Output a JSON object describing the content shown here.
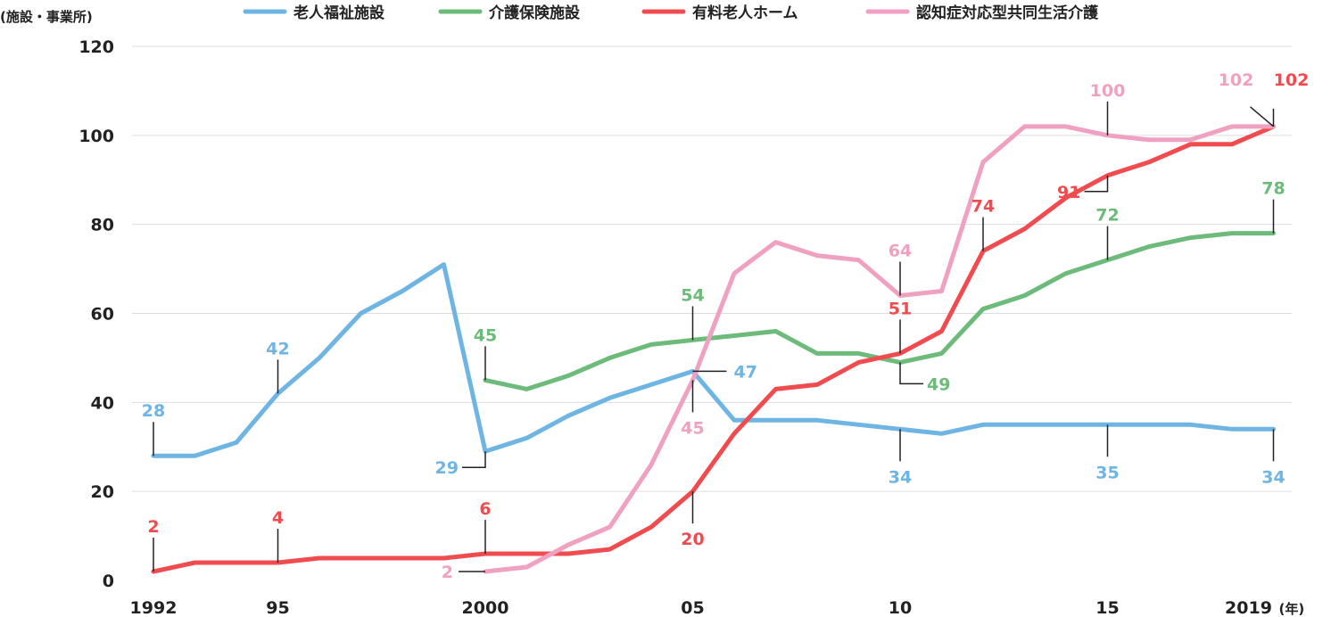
{
  "chart_data": {
    "type": "line",
    "ylabel": "(施設・事業所)",
    "xlabel": "(年)",
    "ylim": [
      0,
      120
    ],
    "xlim": [
      1992,
      2019
    ],
    "grid": true,
    "legend_position": "top",
    "y_ticks": [
      0,
      20,
      40,
      60,
      80,
      100,
      120
    ],
    "x_ticks": [
      {
        "x": 1992,
        "label": "1992"
      },
      {
        "x": 1995,
        "label": "95"
      },
      {
        "x": 2000,
        "label": "2000"
      },
      {
        "x": 2005,
        "label": "05"
      },
      {
        "x": 2010,
        "label": "10"
      },
      {
        "x": 2015,
        "label": "15"
      },
      {
        "x": 2019,
        "label": "2019"
      }
    ],
    "series": [
      {
        "name": "老人福祉施設",
        "color": "#6fb5e3",
        "x": [
          1992,
          1993,
          1994,
          1995,
          1996,
          1997,
          1998,
          1999,
          2000,
          2001,
          2002,
          2003,
          2004,
          2005,
          2006,
          2007,
          2008,
          2009,
          2010,
          2011,
          2012,
          2013,
          2014,
          2015,
          2016,
          2017,
          2018,
          2019
        ],
        "values": [
          28,
          28,
          31,
          42,
          50,
          60,
          65,
          71,
          29,
          32,
          37,
          41,
          44,
          47,
          36,
          36,
          36,
          35,
          34,
          33,
          35,
          35,
          35,
          35,
          35,
          35,
          34,
          34
        ],
        "annotations": [
          {
            "x": 1992,
            "label": "28"
          },
          {
            "x": 1995,
            "label": "42"
          },
          {
            "x": 2000,
            "label": "29"
          },
          {
            "x": 2005,
            "label": "47"
          },
          {
            "x": 2010,
            "label": "34"
          },
          {
            "x": 2015,
            "label": "35"
          },
          {
            "x": 2019,
            "label": "34"
          }
        ]
      },
      {
        "name": "介護保険施設",
        "color": "#6cbb7a",
        "x": [
          2000,
          2001,
          2002,
          2003,
          2004,
          2005,
          2006,
          2007,
          2008,
          2009,
          2010,
          2011,
          2012,
          2013,
          2014,
          2015,
          2016,
          2017,
          2018,
          2019
        ],
        "values": [
          45,
          43,
          46,
          50,
          53,
          54,
          55,
          56,
          51,
          51,
          49,
          51,
          61,
          64,
          69,
          72,
          75,
          77,
          78,
          78
        ],
        "annotations": [
          {
            "x": 2000,
            "label": "45"
          },
          {
            "x": 2005,
            "label": "54"
          },
          {
            "x": 2010,
            "label": "49"
          },
          {
            "x": 2015,
            "label": "72"
          },
          {
            "x": 2019,
            "label": "78"
          }
        ]
      },
      {
        "name": "有料老人ホーム",
        "color": "#f04c50",
        "x": [
          1992,
          1993,
          1994,
          1995,
          1996,
          1997,
          1998,
          1999,
          2000,
          2001,
          2002,
          2003,
          2004,
          2005,
          2006,
          2007,
          2008,
          2009,
          2010,
          2011,
          2012,
          2013,
          2014,
          2015,
          2016,
          2017,
          2018,
          2019
        ],
        "values": [
          2,
          4,
          4,
          4,
          5,
          5,
          5,
          5,
          6,
          6,
          6,
          7,
          12,
          20,
          33,
          43,
          44,
          49,
          51,
          56,
          74,
          79,
          86,
          91,
          94,
          98,
          98,
          102
        ],
        "annotations": [
          {
            "x": 1992,
            "label": "2"
          },
          {
            "x": 1995,
            "label": "4"
          },
          {
            "x": 2000,
            "label": "6"
          },
          {
            "x": 2005,
            "label": "20"
          },
          {
            "x": 2010,
            "label": "51"
          },
          {
            "x": 2012,
            "label": "74"
          },
          {
            "x": 2015,
            "label": "91"
          },
          {
            "x": 2019,
            "label": "102"
          }
        ]
      },
      {
        "name": "認知症対応型共同生活介護",
        "color": "#f0a0c0",
        "x": [
          2000,
          2001,
          2002,
          2003,
          2004,
          2005,
          2006,
          2007,
          2008,
          2009,
          2010,
          2011,
          2012,
          2013,
          2014,
          2015,
          2016,
          2017,
          2018,
          2019
        ],
        "values": [
          2,
          3,
          8,
          12,
          26,
          45,
          69,
          76,
          73,
          72,
          64,
          65,
          94,
          102,
          102,
          100,
          99,
          99,
          102,
          102
        ],
        "annotations": [
          {
            "x": 2000,
            "label": "2"
          },
          {
            "x": 2005,
            "label": "45"
          },
          {
            "x": 2010,
            "label": "64"
          },
          {
            "x": 2015,
            "label": "100"
          },
          {
            "x": 2019,
            "label": "102"
          }
        ]
      }
    ]
  }
}
